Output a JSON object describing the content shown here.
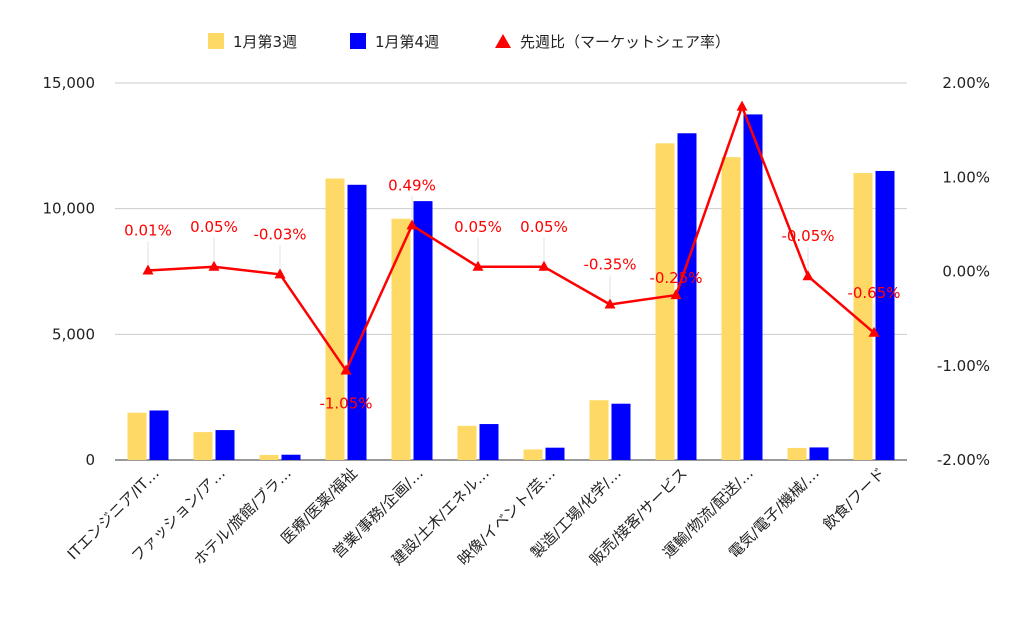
{
  "chart_data": {
    "type": "bar",
    "categories": [
      "ITエンジニア/IT…",
      "ファッション/ア…",
      "ホテル/旅館/ブラ…",
      "医療/医薬/福祉",
      "営業/事務/企画/…",
      "建設/土木/エネル…",
      "映像/イベント/芸…",
      "製造/工場/化学/…",
      "販売/接客/サービス",
      "運輸/物流/配送/…",
      "電気/電子/機械/…",
      "飲食/フード"
    ],
    "series": [
      {
        "name": "1月第3週",
        "type": "bar",
        "axis": "left",
        "color": "#ffd966",
        "values": [
          1880,
          1110,
          200,
          11200,
          9600,
          1360,
          420,
          2380,
          12600,
          12050,
          480,
          11420
        ]
      },
      {
        "name": "1月第4週",
        "type": "bar",
        "axis": "left",
        "color": "#0000ff",
        "values": [
          1970,
          1190,
          210,
          10950,
          10300,
          1430,
          490,
          2240,
          13000,
          13750,
          500,
          11500
        ]
      },
      {
        "name": "先週比（マーケットシェア率）",
        "type": "line",
        "axis": "right",
        "color": "#ff0000",
        "marker": "triangle",
        "values": [
          0.01,
          0.05,
          -0.03,
          -1.05,
          0.49,
          0.05,
          0.05,
          -0.35,
          -0.25,
          1.75,
          -0.05,
          -0.65
        ],
        "labels": [
          "0.01%",
          "0.05%",
          "-0.03%",
          "-1.05%",
          "0.49%",
          "0.05%",
          "0.05%",
          "-0.35%",
          "-0.25%",
          "",
          "-0.05%",
          "-0.65%"
        ]
      }
    ],
    "y_left": {
      "range": [
        0,
        15000
      ],
      "ticks": [
        0,
        5000,
        10000,
        15000
      ],
      "tick_labels": [
        "0",
        "5,000",
        "10,000",
        "15,000"
      ]
    },
    "y_right": {
      "range": [
        -2,
        2
      ],
      "ticks": [
        -2,
        -1,
        0,
        1,
        2
      ],
      "tick_labels": [
        "-2.00%",
        "-1.00%",
        "0.00%",
        "1.00%",
        "2.00%"
      ]
    },
    "grid": true,
    "legend_position": "top-center",
    "title": "",
    "xlabel": "",
    "ylabel": ""
  }
}
